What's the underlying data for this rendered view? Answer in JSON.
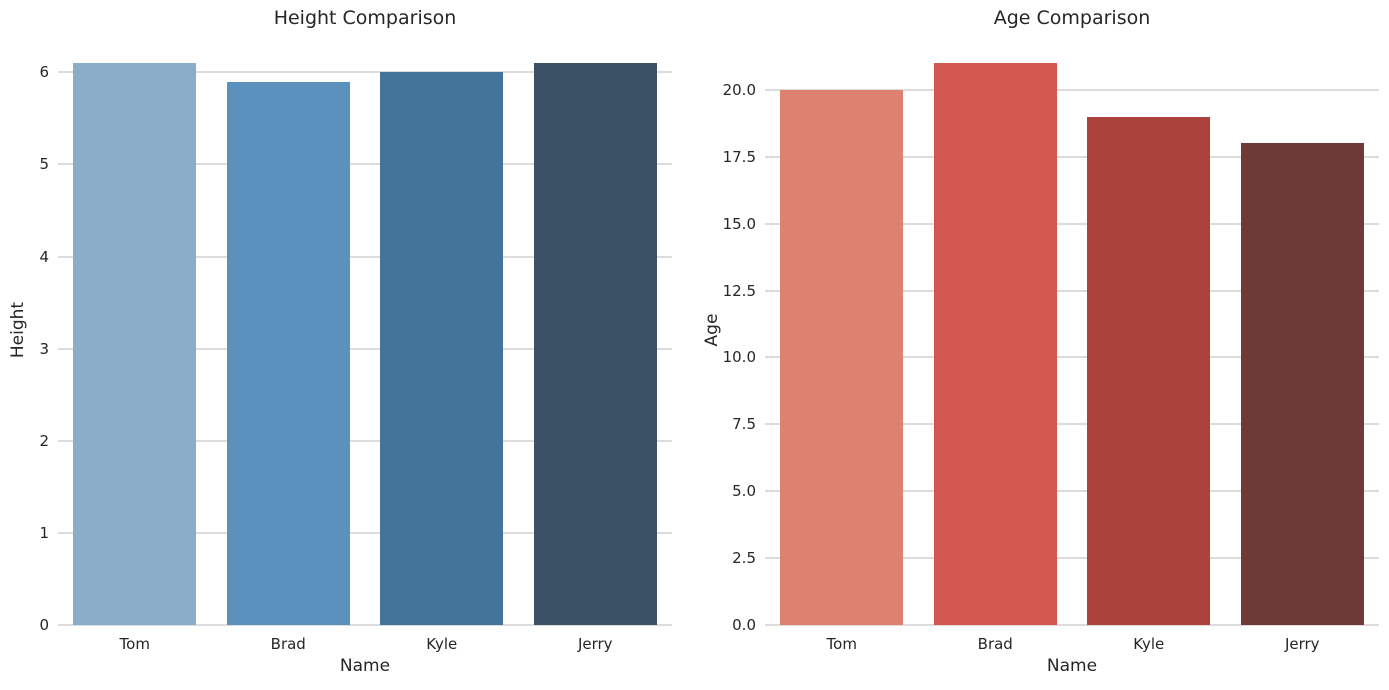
{
  "figure": {
    "background": "#ffffff",
    "grid_color": "#dcdcdc",
    "text_color": "#262626"
  },
  "chart_data": [
    {
      "type": "bar",
      "title": "Height Comparison",
      "xlabel": "Name",
      "ylabel": "Height",
      "categories": [
        "Tom",
        "Brad",
        "Kyle",
        "Jerry"
      ],
      "values": [
        6.1,
        5.9,
        6.0,
        6.1
      ],
      "bar_colors": [
        "#8aaec9",
        "#5b92bd",
        "#45749b",
        "#3b5166"
      ],
      "ylim": [
        0,
        6.405
      ],
      "yticks": [
        0,
        1,
        2,
        3,
        4,
        5,
        6
      ],
      "ytick_labels": [
        "0",
        "1",
        "2",
        "3",
        "4",
        "5",
        "6"
      ],
      "grid": true,
      "legend_position": "none"
    },
    {
      "type": "bar",
      "title": "Age Comparison",
      "xlabel": "Name",
      "ylabel": "Age",
      "categories": [
        "Tom",
        "Brad",
        "Kyle",
        "Jerry"
      ],
      "values": [
        20,
        21,
        19,
        18
      ],
      "bar_colors": [
        "#df8170",
        "#d3574e",
        "#ac423c",
        "#6e3a38"
      ],
      "ylim": [
        0,
        22.05
      ],
      "yticks": [
        0,
        2.5,
        5,
        7.5,
        10,
        12.5,
        15,
        17.5,
        20
      ],
      "ytick_labels": [
        "0.0",
        "2.5",
        "5.0",
        "7.5",
        "10.0",
        "12.5",
        "15.0",
        "17.5",
        "20.0"
      ],
      "grid": true,
      "legend_position": "none"
    }
  ]
}
